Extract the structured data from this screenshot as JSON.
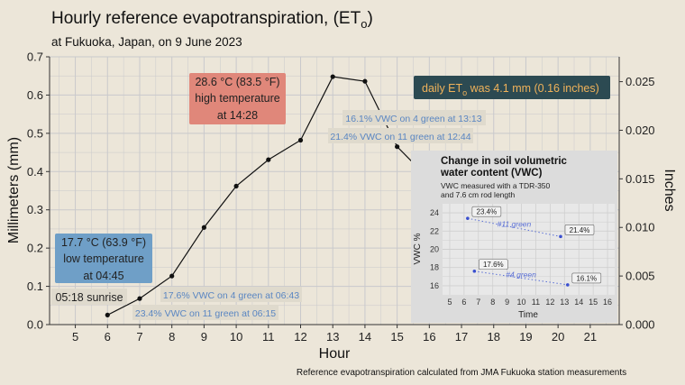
{
  "chart_data": {
    "type": "line",
    "title_main": "Hourly reference evapotranspiration, (ET",
    "title_sub": "o",
    "title_end": ")",
    "subtitle": "at Fukuoka, Japan, on 9 June 2023",
    "xlabel": "Hour",
    "ylabel": "Millimeters (mm)",
    "ylabel_right": "Inches",
    "caption": "Reference evapotranspiration calculated from JMA Fukuoka station measurements",
    "xlim": [
      4.2,
      21.9
    ],
    "ylim": [
      0,
      0.7
    ],
    "x_ticks": [
      "5",
      "6",
      "7",
      "8",
      "9",
      "10",
      "11",
      "12",
      "13",
      "14",
      "15",
      "16",
      "17",
      "18",
      "19",
      "20",
      "21"
    ],
    "y_ticks": [
      "0.0",
      "0.1",
      "0.2",
      "0.3",
      "0.4",
      "0.5",
      "0.6",
      "0.7"
    ],
    "y2_ticks": [
      "0.000",
      "0.005",
      "0.010",
      "0.015",
      "0.020",
      "0.025"
    ],
    "series": [
      {
        "x": [
          6,
          7,
          8,
          9,
          10,
          11,
          12,
          13,
          14,
          15,
          16
        ],
        "values": [
          0.025,
          0.068,
          0.127,
          0.254,
          0.362,
          0.431,
          0.482,
          0.648,
          0.636,
          0.465,
          0.38
        ]
      }
    ],
    "annotations": {
      "high_l1": "28.6 °C (83.5 °F)",
      "high_l2": "high temperature",
      "high_l3": "at 14:28",
      "low_l1": "17.7 °C (63.9 °F)",
      "low_l2": "low temperature",
      "low_l3": "at 04:45",
      "sunrise": "05:18 sunrise",
      "daily_pre": "daily ET",
      "daily_sub": "o",
      "daily_post": " was 4.1 mm (0.16 inches)",
      "vwc1": "16.1% VWC on 4 green at 13:13",
      "vwc2": "21.4% VWC on 11 green at 12:44",
      "vwc3": "17.6% VWC on 4 green at 06:43",
      "vwc4": "23.4% VWC on 11 green at 06:15"
    },
    "inset": {
      "title_l1": "Change in soil volumetric",
      "title_l2": "water content (VWC)",
      "sub_l1": "VWC measured with a TDR-350",
      "sub_l2": "and 7.6 cm rod length",
      "xlabel": "Time",
      "ylabel": "VWC %",
      "xlim": [
        4.5,
        16.5
      ],
      "ylim": [
        15,
        25
      ],
      "x_ticks": [
        "5",
        "6",
        "7",
        "8",
        "9",
        "10",
        "11",
        "12",
        "13",
        "14",
        "15",
        "16"
      ],
      "y_ticks": [
        "16",
        "18",
        "20",
        "22",
        "24"
      ],
      "series": [
        {
          "name": "#11 green",
          "x": [
            6.25,
            12.73
          ],
          "values": [
            23.4,
            21.4
          ],
          "labels": [
            "23.4%",
            "21.4%"
          ]
        },
        {
          "name": "#4 green",
          "x": [
            6.72,
            13.22
          ],
          "values": [
            17.6,
            16.1
          ],
          "labels": [
            "17.6%",
            "16.1%"
          ]
        }
      ]
    }
  }
}
